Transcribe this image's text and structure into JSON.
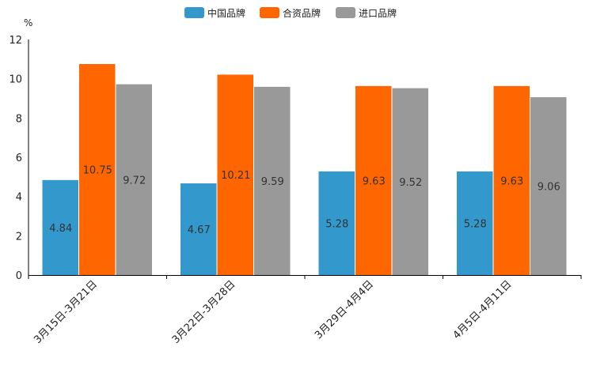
{
  "chart_data": {
    "type": "bar",
    "title": "",
    "xlabel": "",
    "ylabel": "%",
    "ylim": [
      0,
      12
    ],
    "yticks": [
      0,
      2,
      4,
      6,
      8,
      10,
      12
    ],
    "grid": false,
    "legend_position": "top-center",
    "categories": [
      "3月15日-3月21日",
      "3月22日-3月28日",
      "3月29日-4月4日",
      "4月5日-4月11日"
    ],
    "series": [
      {
        "name": "中国品牌",
        "color": "#3399cc",
        "values": [
          4.84,
          4.67,
          5.28,
          5.28
        ]
      },
      {
        "name": "合资品牌",
        "color": "#ff6600",
        "values": [
          10.75,
          10.21,
          9.63,
          9.63
        ]
      },
      {
        "name": "进口品牌",
        "color": "#999999",
        "values": [
          9.72,
          9.59,
          9.52,
          9.06
        ]
      }
    ]
  }
}
